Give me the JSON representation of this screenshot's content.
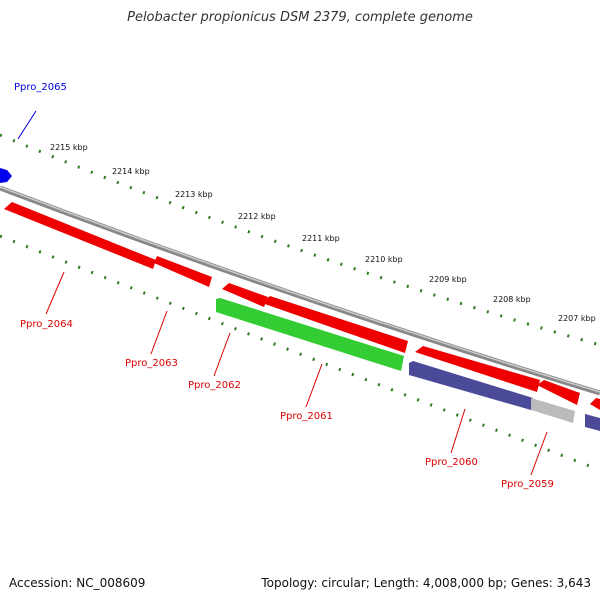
{
  "title": "Pelobacter propionicus DSM 2379, complete genome",
  "accession": "Accession: NC_008609",
  "summary": "Topology: circular; Length: 4,008,000 bp; Genes: 3,643",
  "scale_labels": [
    "2215 kbp",
    "2214 kbp",
    "2213 kbp",
    "2212 kbp",
    "2211 kbp",
    "2210 kbp",
    "2209 kbp",
    "2208 kbp",
    "2207 kbp"
  ],
  "genes": [
    {
      "name": "Ppro_2065",
      "color": "#0000dd"
    },
    {
      "name": "Ppro_2064",
      "color": "#dd0000"
    },
    {
      "name": "Ppro_2063",
      "color": "#dd0000"
    },
    {
      "name": "Ppro_2062",
      "color": "#dd0000"
    },
    {
      "name": "Ppro_2061",
      "color": "#dd0000"
    },
    {
      "name": "Ppro_2060",
      "color": "#dd0000"
    },
    {
      "name": "Ppro_2059",
      "color": "#dd0000"
    }
  ],
  "colors": {
    "red": "#ee0000",
    "green": "#33cc33",
    "purple": "#4a4a99",
    "gray": "#bbbbbb",
    "blue": "#0000ee",
    "ruler": "#2e7d1e",
    "backbone": "#777777"
  }
}
